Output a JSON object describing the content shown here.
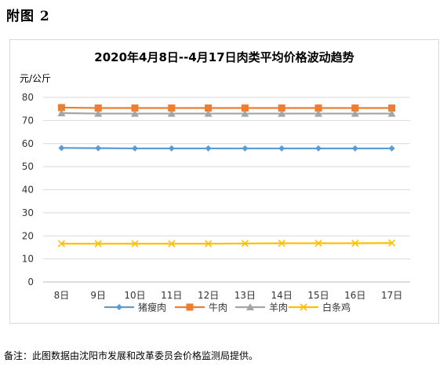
{
  "heading": "附图 2",
  "footnote": "备注：此图数据由沈阳市发展和改革委员会价格监测局提供。",
  "chart_data": {
    "type": "line",
    "title": "2020年4月8日--4月17日肉类平均价格波动趋势",
    "ylabel": "元/公斤",
    "xlabel": "",
    "ylim": [
      0,
      80
    ],
    "yticks": [
      0,
      10,
      20,
      30,
      40,
      50,
      60,
      70,
      80
    ],
    "grid": true,
    "legend_position": "bottom",
    "categories": [
      "8日",
      "9日",
      "10日",
      "11日",
      "12日",
      "13日",
      "14日",
      "15日",
      "16日",
      "17日"
    ],
    "series": [
      {
        "name": "猪瘦肉",
        "color": "#5b9bd5",
        "marker": "diamond",
        "values": [
          58.1,
          58.0,
          57.9,
          57.9,
          57.9,
          57.9,
          57.9,
          57.9,
          57.9,
          57.9
        ]
      },
      {
        "name": "牛肉",
        "color": "#ed7d31",
        "marker": "square",
        "values": [
          75.6,
          75.4,
          75.4,
          75.4,
          75.4,
          75.4,
          75.4,
          75.4,
          75.4,
          75.4
        ]
      },
      {
        "name": "羊肉",
        "color": "#a5a5a5",
        "marker": "triangle",
        "values": [
          73.2,
          73.0,
          73.0,
          73.0,
          73.0,
          73.0,
          73.0,
          73.0,
          73.0,
          73.0
        ]
      },
      {
        "name": "白条鸡",
        "color": "#ffc000",
        "marker": "x",
        "values": [
          16.6,
          16.6,
          16.6,
          16.6,
          16.6,
          16.7,
          16.8,
          16.8,
          16.8,
          16.9
        ]
      }
    ]
  }
}
